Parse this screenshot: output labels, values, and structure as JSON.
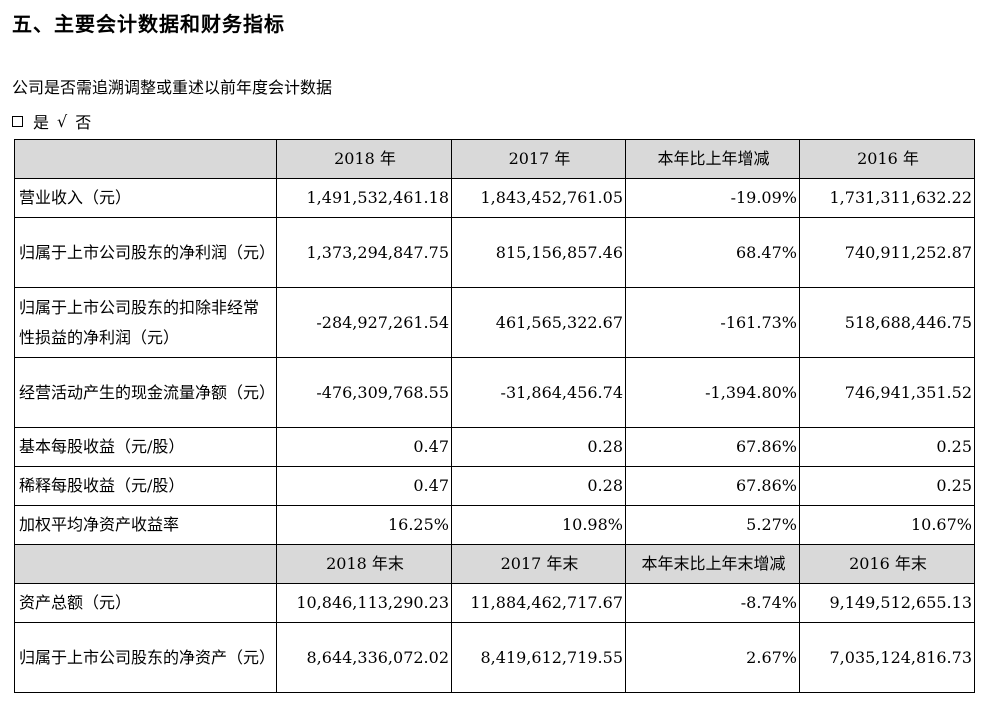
{
  "heading": "五、主要会计数据和财务指标",
  "question": "公司是否需追溯调整或重述以前年度会计数据",
  "answer": {
    "yes": "是",
    "check": "√",
    "no": "否"
  },
  "header1": [
    "",
    "2018 年",
    "2017 年",
    "本年比上年增减",
    "2016 年"
  ],
  "rows1": [
    {
      "label": "营业收入（元）",
      "v2018": "1,491,532,461.18",
      "v2017": "1,843,452,761.05",
      "change": "-19.09%",
      "v2016": "1,731,311,632.22"
    },
    {
      "label": "归属于上市公司股东的净利润（元）",
      "v2018": "1,373,294,847.75",
      "v2017": "815,156,857.46",
      "change": "68.47%",
      "v2016": "740,911,252.87"
    },
    {
      "label": "归属于上市公司股东的扣除非经常性损益的净利润（元）",
      "v2018": "-284,927,261.54",
      "v2017": "461,565,322.67",
      "change": "-161.73%",
      "v2016": "518,688,446.75"
    },
    {
      "label": "经营活动产生的现金流量净额（元）",
      "v2018": "-476,309,768.55",
      "v2017": "-31,864,456.74",
      "change": "-1,394.80%",
      "v2016": "746,941,351.52"
    },
    {
      "label": "基本每股收益（元/股）",
      "v2018": "0.47",
      "v2017": "0.28",
      "change": "67.86%",
      "v2016": "0.25"
    },
    {
      "label": "稀释每股收益（元/股）",
      "v2018": "0.47",
      "v2017": "0.28",
      "change": "67.86%",
      "v2016": "0.25"
    },
    {
      "label": "加权平均净资产收益率",
      "v2018": "16.25%",
      "v2017": "10.98%",
      "change": "5.27%",
      "v2016": "10.67%"
    }
  ],
  "header2": [
    "",
    "2018 年末",
    "2017 年末",
    "本年末比上年末增减",
    "2016 年末"
  ],
  "rows2": [
    {
      "label": "资产总额（元）",
      "v2018": "10,846,113,290.23",
      "v2017": "11,884,462,717.67",
      "change": "-8.74%",
      "v2016": "9,149,512,655.13"
    },
    {
      "label": "归属于上市公司股东的净资产（元）",
      "v2018": "8,644,336,072.02",
      "v2017": "8,419,612,719.55",
      "change": "2.67%",
      "v2016": "7,035,124,816.73"
    }
  ]
}
